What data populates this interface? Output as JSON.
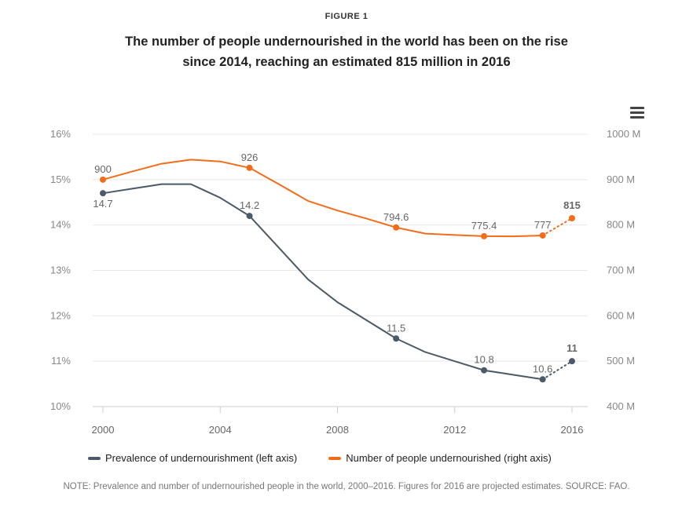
{
  "figure_label": "FIGURE 1",
  "title_line1": "The number of people undernourished in the world has been on the rise",
  "title_line2": "since 2014, reaching an estimated 815 million in 2016",
  "note": "NOTE: Prevalence and number of undernourished people in the world, 2000–2016. Figures for 2016 are projected estimates. SOURCE: FAO.",
  "menu_icon": "hamburger-menu-icon",
  "colors": {
    "prevalence": "#4a5a68",
    "number": "#f26c1a",
    "grid": "#e8e8e8",
    "axis": "#cccccc"
  },
  "chart_data": {
    "type": "line",
    "x_ticks": [
      "2000",
      "2004",
      "2008",
      "2012",
      "2016"
    ],
    "x_range": [
      2000,
      2016
    ],
    "left_axis": {
      "ticks": [
        "16%",
        "15%",
        "14%",
        "13%",
        "12%",
        "11%",
        "10%"
      ],
      "range": [
        10,
        16
      ]
    },
    "right_axis": {
      "ticks": [
        "1000 M",
        "900 M",
        "800 M",
        "700 M",
        "600 M",
        "500 M",
        "400 M"
      ],
      "range": [
        400,
        1000
      ]
    },
    "series": [
      {
        "name": "Prevalence of undernourishment (left axis)",
        "axis": "left",
        "x": [
          2000,
          2001,
          2002,
          2003,
          2004,
          2005,
          2006,
          2007,
          2008,
          2009,
          2010,
          2011,
          2012,
          2013,
          2014,
          2015,
          2016
        ],
        "values": [
          14.7,
          14.8,
          14.9,
          14.9,
          14.6,
          14.2,
          13.5,
          12.8,
          12.3,
          11.9,
          11.5,
          11.2,
          11.0,
          10.8,
          10.7,
          10.6,
          11
        ],
        "projected_from_index": 15,
        "labels": [
          {
            "x": 2000,
            "value": 14.7,
            "text": "14.7",
            "pos": "below"
          },
          {
            "x": 2005,
            "value": 14.2,
            "text": "14.2",
            "pos": "above"
          },
          {
            "x": 2010,
            "value": 11.5,
            "text": "11.5",
            "pos": "above"
          },
          {
            "x": 2013,
            "value": 10.8,
            "text": "10.8",
            "pos": "above"
          },
          {
            "x": 2015,
            "value": 10.6,
            "text": "10.6",
            "pos": "above"
          },
          {
            "x": 2016,
            "value": 11,
            "text": "11",
            "pos": "above",
            "bold": true
          }
        ]
      },
      {
        "name": "Number of people undernourished (right axis)",
        "axis": "right",
        "x": [
          2000,
          2001,
          2002,
          2003,
          2004,
          2005,
          2006,
          2007,
          2008,
          2009,
          2010,
          2011,
          2012,
          2013,
          2014,
          2015,
          2016
        ],
        "values": [
          900,
          918,
          935,
          944,
          940,
          926,
          890,
          853,
          832,
          814,
          794.6,
          781,
          778,
          775.4,
          775,
          777,
          815
        ],
        "projected_from_index": 15,
        "labels": [
          {
            "x": 2000,
            "value": 900,
            "text": "900",
            "pos": "above"
          },
          {
            "x": 2005,
            "value": 926,
            "text": "926",
            "pos": "above"
          },
          {
            "x": 2010,
            "value": 794.6,
            "text": "794.6",
            "pos": "above"
          },
          {
            "x": 2013,
            "value": 775.4,
            "text": "775.4",
            "pos": "above"
          },
          {
            "x": 2015,
            "value": 777,
            "text": "777",
            "pos": "above"
          },
          {
            "x": 2016,
            "value": 815,
            "text": "815",
            "pos": "above",
            "bold": true
          }
        ]
      }
    ]
  }
}
